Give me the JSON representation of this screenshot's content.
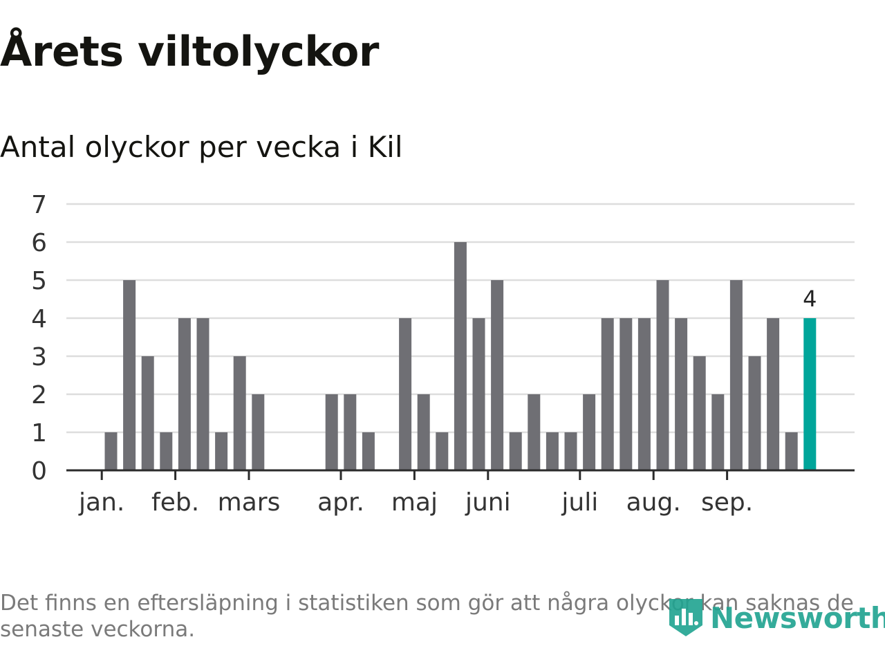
{
  "header": {
    "title": "Årets viltolyckor",
    "subtitle": "Antal olyckor per vecka i Kil"
  },
  "chart_data": {
    "type": "bar",
    "title": "Antal olyckor per vecka i Kil",
    "xlabel": "",
    "ylabel": "",
    "ylim": [
      0,
      7
    ],
    "yticks": [
      "0",
      "1",
      "2",
      "3",
      "4",
      "5",
      "6",
      "7"
    ],
    "grid": true,
    "weeks": [
      1,
      2,
      3,
      4,
      5,
      6,
      7,
      8,
      9,
      10,
      11,
      12,
      13,
      14,
      15,
      16,
      17,
      18,
      19,
      20,
      21,
      22,
      23,
      24,
      25,
      26,
      27,
      28,
      29,
      30,
      31,
      32,
      33,
      34,
      35,
      36,
      37,
      38,
      39,
      40,
      41,
      42
    ],
    "values": [
      null,
      1,
      5,
      3,
      1,
      4,
      4,
      1,
      3,
      2,
      null,
      null,
      null,
      2,
      2,
      1,
      null,
      4,
      2,
      1,
      6,
      4,
      5,
      1,
      2,
      1,
      1,
      2,
      4,
      4,
      4,
      5,
      4,
      3,
      2,
      5,
      3,
      4,
      1,
      4,
      null,
      null
    ],
    "month_ticks": [
      {
        "label": "jan.",
        "week": 1.5
      },
      {
        "label": "feb.",
        "week": 5.5
      },
      {
        "label": "mars",
        "week": 9.5
      },
      {
        "label": "apr.",
        "week": 14.5
      },
      {
        "label": "maj",
        "week": 18.5
      },
      {
        "label": "juni",
        "week": 22.5
      },
      {
        "label": "juli",
        "week": 27.5
      },
      {
        "label": "aug.",
        "week": 31.5
      },
      {
        "label": "sep.",
        "week": 35.5
      }
    ],
    "highlight": {
      "week": 40,
      "value": 4,
      "label": "4"
    },
    "colors": {
      "bar": "#6f6f74",
      "highlight": "#00a59a",
      "grid": "#dddddd",
      "axis": "#2b2b2b",
      "text": "#333333"
    }
  },
  "footer": {
    "note": "Det finns en eftersläpning i statistiken som gör att några olyckor kan saknas de senaste veckorna.",
    "brand": "Newsworthy",
    "logo_icon": "newsworthy-logo-icon",
    "brand_color": "#1fa390"
  }
}
